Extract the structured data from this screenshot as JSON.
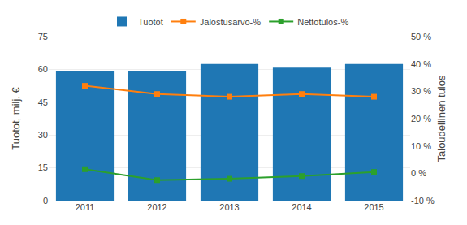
{
  "chart_data": {
    "type": "bar",
    "categories": [
      "2011",
      "2012",
      "2013",
      "2014",
      "2015"
    ],
    "series": [
      {
        "name": "Tuotot",
        "type": "bar",
        "values": [
          59.2,
          59.0,
          62.5,
          60.8,
          62.5
        ]
      },
      {
        "name": "Jalostusarvo-%",
        "type": "line",
        "axis": "y2",
        "marker": "square",
        "values": [
          32.0,
          29.0,
          28.0,
          29.0,
          28.0
        ]
      },
      {
        "name": "Nettotulos-%",
        "type": "line",
        "axis": "y2",
        "marker": "square",
        "values": [
          1.5,
          -2.5,
          -2.0,
          -1.0,
          0.5
        ]
      }
    ],
    "y_label": "Tuotot, milj. €",
    "y2_label": "Taloudellinen tulos",
    "ylim": [
      0,
      75
    ],
    "yticks": [
      0,
      15,
      30,
      45,
      60,
      75
    ],
    "y2lim": [
      -10,
      50
    ],
    "y2ticks": [
      {
        "value": -10,
        "label": "-10 %"
      },
      {
        "value": 0,
        "label": "0 %"
      },
      {
        "value": 10,
        "label": "10 %"
      },
      {
        "value": 20,
        "label": "20 %"
      },
      {
        "value": 30,
        "label": "30 %"
      },
      {
        "value": 40,
        "label": "40 %"
      },
      {
        "value": 50,
        "label": "50 %"
      }
    ],
    "grid": true,
    "legend": "top"
  }
}
